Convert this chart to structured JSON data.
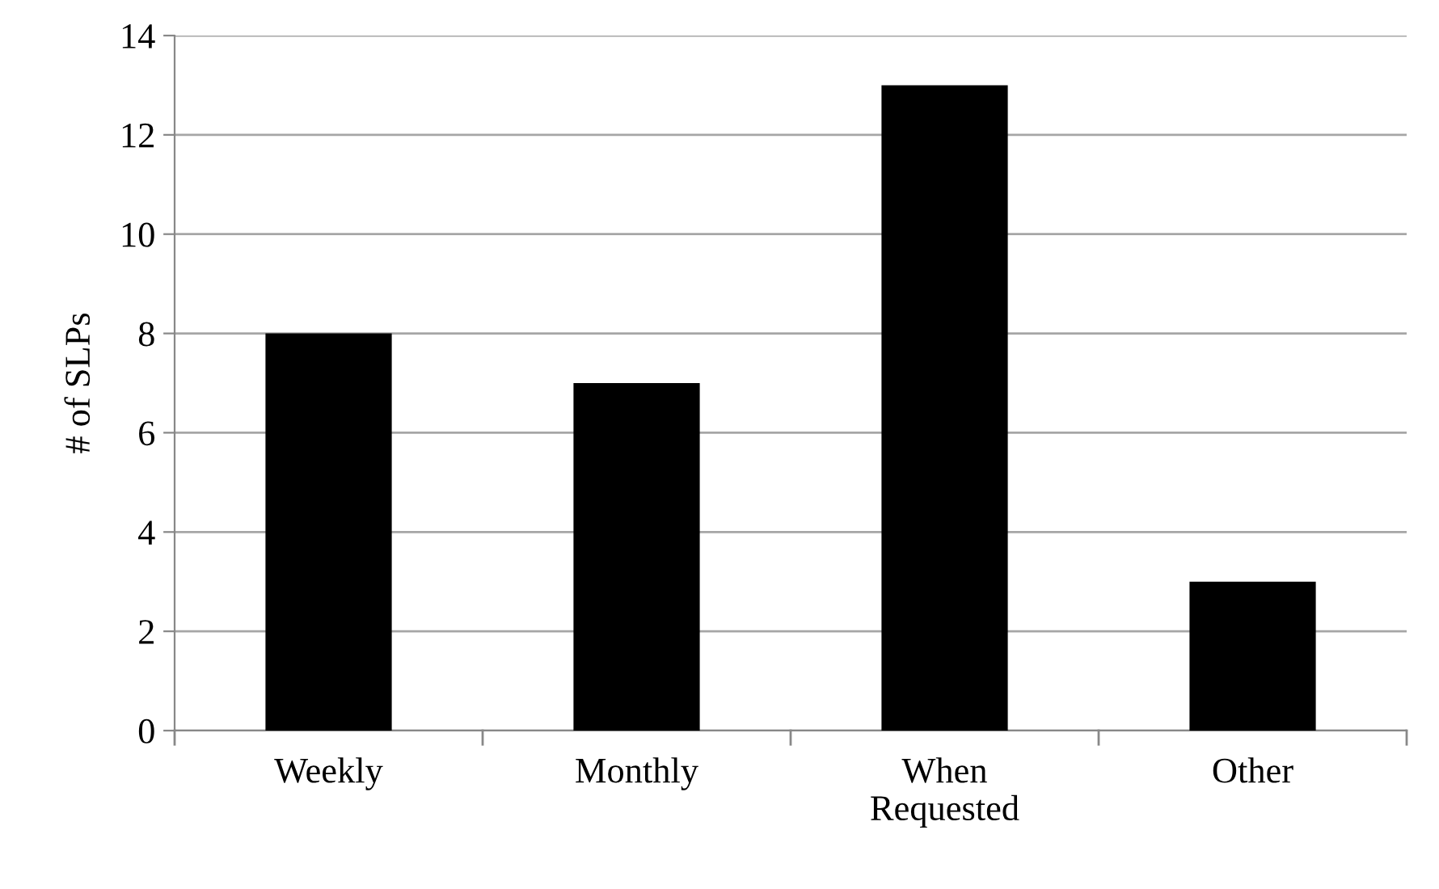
{
  "chart_data": {
    "type": "bar",
    "ylabel": "# of SLPs",
    "categories": [
      "Weekly",
      "Monthly",
      "When\nRequested",
      "Other"
    ],
    "values": [
      8,
      7,
      13,
      3
    ],
    "color": "#000000",
    "ylim": [
      0,
      14
    ],
    "yticks": [
      0,
      2,
      4,
      6,
      8,
      10,
      12,
      14
    ],
    "grid": "y"
  }
}
